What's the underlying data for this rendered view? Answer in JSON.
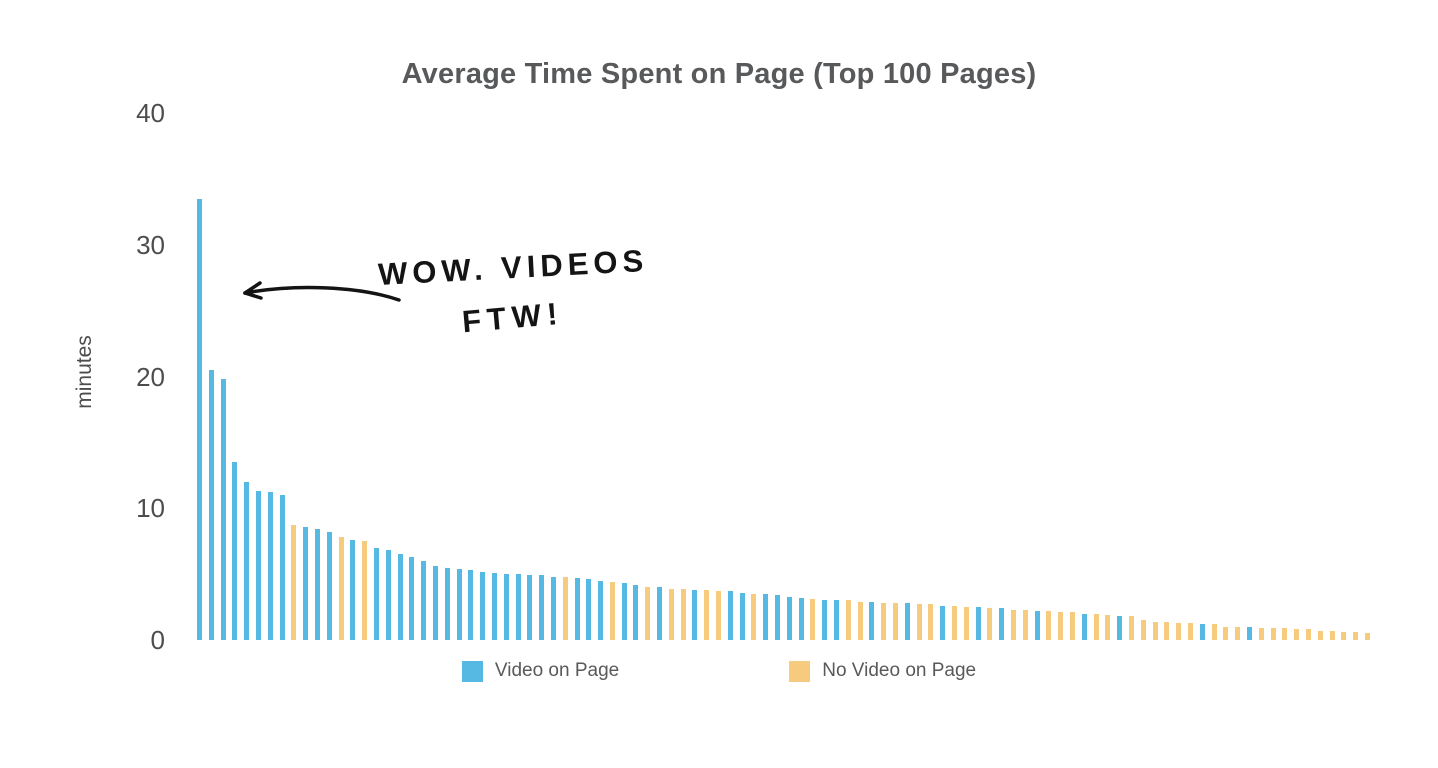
{
  "chart_data": {
    "type": "bar",
    "title": "Average Time Spent on Page (Top 100 Pages)",
    "xlabel": "",
    "ylabel": "minutes",
    "ylim": [
      0,
      40
    ],
    "yticks": [
      0,
      10,
      20,
      30,
      40
    ],
    "grid": false,
    "legend_position": "bottom",
    "colors": {
      "video": "#56B9E4",
      "novideo": "#F6CB7E"
    },
    "legend": [
      {
        "key": "video",
        "label": "Video on Page"
      },
      {
        "key": "novideo",
        "label": "No Video on Page"
      }
    ],
    "annotation": {
      "line1": "WOW. VIDEOS",
      "line2": "FTW!"
    },
    "bars": [
      [
        33.5,
        "v"
      ],
      [
        20.5,
        "v"
      ],
      [
        19.8,
        "v"
      ],
      [
        13.5,
        "v"
      ],
      [
        12,
        "v"
      ],
      [
        11.3,
        "v"
      ],
      [
        11.2,
        "v"
      ],
      [
        11,
        "v"
      ],
      [
        8.7,
        "n"
      ],
      [
        8.6,
        "v"
      ],
      [
        8.4,
        "v"
      ],
      [
        8.2,
        "v"
      ],
      [
        7.8,
        "n"
      ],
      [
        7.6,
        "v"
      ],
      [
        7.5,
        "n"
      ],
      [
        7,
        "v"
      ],
      [
        6.8,
        "v"
      ],
      [
        6.5,
        "v"
      ],
      [
        6.3,
        "v"
      ],
      [
        6,
        "v"
      ],
      [
        5.6,
        "v"
      ],
      [
        5.5,
        "v"
      ],
      [
        5.4,
        "v"
      ],
      [
        5.3,
        "v"
      ],
      [
        5.2,
        "v"
      ],
      [
        5.1,
        "v"
      ],
      [
        5,
        "v"
      ],
      [
        5,
        "v"
      ],
      [
        4.9,
        "v"
      ],
      [
        4.9,
        "v"
      ],
      [
        4.8,
        "v"
      ],
      [
        4.8,
        "n"
      ],
      [
        4.7,
        "v"
      ],
      [
        4.6,
        "v"
      ],
      [
        4.5,
        "v"
      ],
      [
        4.4,
        "n"
      ],
      [
        4.3,
        "v"
      ],
      [
        4.2,
        "v"
      ],
      [
        4,
        "n"
      ],
      [
        4,
        "v"
      ],
      [
        3.9,
        "n"
      ],
      [
        3.9,
        "n"
      ],
      [
        3.8,
        "v"
      ],
      [
        3.8,
        "n"
      ],
      [
        3.7,
        "n"
      ],
      [
        3.7,
        "v"
      ],
      [
        3.6,
        "v"
      ],
      [
        3.5,
        "n"
      ],
      [
        3.5,
        "v"
      ],
      [
        3.4,
        "v"
      ],
      [
        3.3,
        "v"
      ],
      [
        3.2,
        "v"
      ],
      [
        3.1,
        "n"
      ],
      [
        3,
        "v"
      ],
      [
        3,
        "v"
      ],
      [
        3,
        "n"
      ],
      [
        2.9,
        "n"
      ],
      [
        2.9,
        "v"
      ],
      [
        2.8,
        "n"
      ],
      [
        2.8,
        "n"
      ],
      [
        2.8,
        "v"
      ],
      [
        2.7,
        "n"
      ],
      [
        2.7,
        "n"
      ],
      [
        2.6,
        "v"
      ],
      [
        2.6,
        "n"
      ],
      [
        2.5,
        "n"
      ],
      [
        2.5,
        "v"
      ],
      [
        2.4,
        "n"
      ],
      [
        2.4,
        "v"
      ],
      [
        2.3,
        "n"
      ],
      [
        2.3,
        "n"
      ],
      [
        2.2,
        "v"
      ],
      [
        2.2,
        "n"
      ],
      [
        2.1,
        "n"
      ],
      [
        2.1,
        "n"
      ],
      [
        2,
        "v"
      ],
      [
        2,
        "n"
      ],
      [
        1.9,
        "n"
      ],
      [
        1.8,
        "v"
      ],
      [
        1.8,
        "n"
      ],
      [
        1.5,
        "n"
      ],
      [
        1.4,
        "n"
      ],
      [
        1.4,
        "n"
      ],
      [
        1.3,
        "n"
      ],
      [
        1.3,
        "n"
      ],
      [
        1.2,
        "v"
      ],
      [
        1.2,
        "n"
      ],
      [
        1,
        "n"
      ],
      [
        1,
        "n"
      ],
      [
        1,
        "v"
      ],
      [
        0.9,
        "n"
      ],
      [
        0.9,
        "n"
      ],
      [
        0.9,
        "n"
      ],
      [
        0.8,
        "n"
      ],
      [
        0.8,
        "n"
      ],
      [
        0.7,
        "n"
      ],
      [
        0.7,
        "n"
      ],
      [
        0.6,
        "n"
      ],
      [
        0.6,
        "n"
      ],
      [
        0.5,
        "n"
      ]
    ]
  }
}
